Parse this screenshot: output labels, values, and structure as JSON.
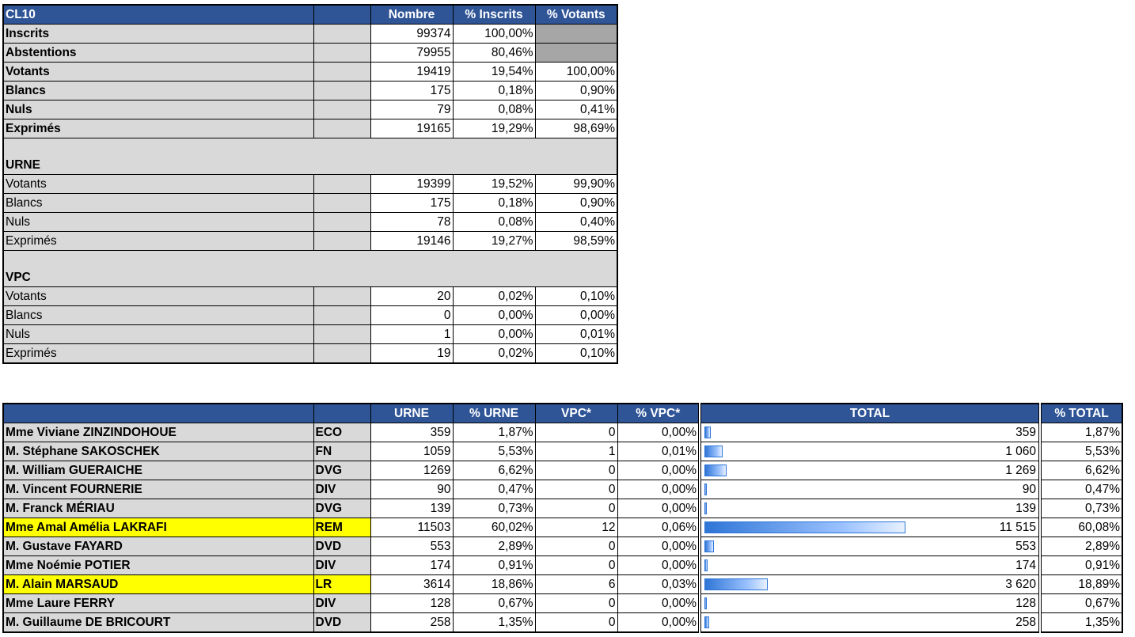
{
  "summary": {
    "title": "CL10",
    "headers": [
      "Nombre",
      "% Inscrits",
      "% Votants"
    ],
    "rows": [
      {
        "label": "Inscrits",
        "nombre": "99374",
        "pct_inscrits": "100,00%",
        "pct_votants": ""
      },
      {
        "label": "Abstentions",
        "nombre": "79955",
        "pct_inscrits": "80,46%",
        "pct_votants": ""
      },
      {
        "label": "Votants",
        "nombre": "19419",
        "pct_inscrits": "19,54%",
        "pct_votants": "100,00%"
      },
      {
        "label": "Blancs",
        "nombre": "175",
        "pct_inscrits": "0,18%",
        "pct_votants": "0,90%"
      },
      {
        "label": "Nuls",
        "nombre": "79",
        "pct_inscrits": "0,08%",
        "pct_votants": "0,41%"
      },
      {
        "label": "Exprimés",
        "nombre": "19165",
        "pct_inscrits": "19,29%",
        "pct_votants": "98,69%"
      }
    ],
    "urne": {
      "title": "URNE",
      "rows": [
        {
          "label": "Votants",
          "nombre": "19399",
          "pct_inscrits": "19,52%",
          "pct_votants": "99,90%"
        },
        {
          "label": "Blancs",
          "nombre": "175",
          "pct_inscrits": "0,18%",
          "pct_votants": "0,90%"
        },
        {
          "label": "Nuls",
          "nombre": "78",
          "pct_inscrits": "0,08%",
          "pct_votants": "0,40%"
        },
        {
          "label": "Exprimés",
          "nombre": "19146",
          "pct_inscrits": "19,27%",
          "pct_votants": "98,59%"
        }
      ]
    },
    "vpc": {
      "title": "VPC",
      "rows": [
        {
          "label": "Votants",
          "nombre": "20",
          "pct_inscrits": "0,02%",
          "pct_votants": "0,10%"
        },
        {
          "label": "Blancs",
          "nombre": "0",
          "pct_inscrits": "0,00%",
          "pct_votants": "0,00%"
        },
        {
          "label": "Nuls",
          "nombre": "1",
          "pct_inscrits": "0,00%",
          "pct_votants": "0,01%"
        },
        {
          "label": "Exprimés",
          "nombre": "19",
          "pct_inscrits": "0,02%",
          "pct_votants": "0,10%"
        }
      ]
    }
  },
  "candidates": {
    "headers": [
      "URNE",
      "% URNE",
      "VPC*",
      "% VPC*",
      "TOTAL",
      "% TOTAL"
    ],
    "highlight_color": "#ffff00",
    "bar_color": "#2e75d6",
    "rows": [
      {
        "name": "Mme Viviane ZINZINDOHOUE",
        "party": "ECO",
        "urne": "359",
        "pct_urne": "1,87%",
        "vpc": "0",
        "pct_vpc": "0,00%",
        "total": "359",
        "pct_total": "1,87%",
        "share": 0.0187,
        "highlight": false
      },
      {
        "name": "M. Stéphane SAKOSCHEK",
        "party": "FN",
        "urne": "1059",
        "pct_urne": "5,53%",
        "vpc": "1",
        "pct_vpc": "0,01%",
        "total": "1 060",
        "pct_total": "5,53%",
        "share": 0.0553,
        "highlight": false
      },
      {
        "name": "M. William GUERAICHE",
        "party": "DVG",
        "urne": "1269",
        "pct_urne": "6,62%",
        "vpc": "0",
        "pct_vpc": "0,00%",
        "total": "1 269",
        "pct_total": "6,62%",
        "share": 0.0662,
        "highlight": false
      },
      {
        "name": "M. Vincent FOURNERIE",
        "party": "DIV",
        "urne": "90",
        "pct_urne": "0,47%",
        "vpc": "0",
        "pct_vpc": "0,00%",
        "total": "90",
        "pct_total": "0,47%",
        "share": 0.0047,
        "highlight": false
      },
      {
        "name": "M. Franck MÉRIAU",
        "party": "DVG",
        "urne": "139",
        "pct_urne": "0,73%",
        "vpc": "0",
        "pct_vpc": "0,00%",
        "total": "139",
        "pct_total": "0,73%",
        "share": 0.0073,
        "highlight": false
      },
      {
        "name": "Mme Amal Amélia LAKRAFI",
        "party": "REM",
        "urne": "11503",
        "pct_urne": "60,02%",
        "vpc": "12",
        "pct_vpc": "0,06%",
        "total": "11 515",
        "pct_total": "60,08%",
        "share": 0.6008,
        "highlight": true
      },
      {
        "name": "M. Gustave FAYARD",
        "party": "DVD",
        "urne": "553",
        "pct_urne": "2,89%",
        "vpc": "0",
        "pct_vpc": "0,00%",
        "total": "553",
        "pct_total": "2,89%",
        "share": 0.0289,
        "highlight": false
      },
      {
        "name": "Mme Noémie POTIER",
        "party": "DIV",
        "urne": "174",
        "pct_urne": "0,91%",
        "vpc": "0",
        "pct_vpc": "0,00%",
        "total": "174",
        "pct_total": "0,91%",
        "share": 0.0091,
        "highlight": false
      },
      {
        "name": "M. Alain MARSAUD",
        "party": "LR",
        "urne": "3614",
        "pct_urne": "18,86%",
        "vpc": "6",
        "pct_vpc": "0,03%",
        "total": "3 620",
        "pct_total": "18,89%",
        "share": 0.1889,
        "highlight": true
      },
      {
        "name": "Mme Laure FERRY",
        "party": "DIV",
        "urne": "128",
        "pct_urne": "0,67%",
        "vpc": "0",
        "pct_vpc": "0,00%",
        "total": "128",
        "pct_total": "0,67%",
        "share": 0.0067,
        "highlight": false
      },
      {
        "name": "M. Guillaume DE BRICOURT",
        "party": "DVD",
        "urne": "258",
        "pct_urne": "1,35%",
        "vpc": "0",
        "pct_vpc": "0,00%",
        "total": "258",
        "pct_total": "1,35%",
        "share": 0.0135,
        "highlight": false
      }
    ]
  }
}
